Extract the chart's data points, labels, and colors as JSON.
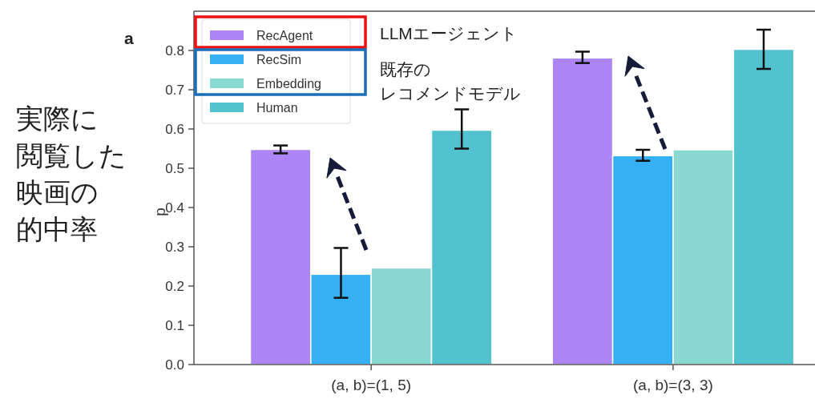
{
  "chart_data": {
    "type": "bar",
    "ylabel": "p",
    "categories": [
      "(a, b)=(1, 5)",
      "(a, b)=(3, 3)"
    ],
    "series": [
      {
        "name": "RecAgent",
        "color": "#ad85f5",
        "values": [
          0.548,
          0.781
        ],
        "errors": [
          0.01,
          [
            0.768,
            0.797
          ]
        ]
      },
      {
        "name": "RecSim",
        "color": "#35b0f5",
        "values": [
          0.23,
          0.532
        ],
        "errors": [
          [
            0.17,
            0.297
          ],
          [
            0.519,
            0.547
          ]
        ]
      },
      {
        "name": "Embedding",
        "color": "#8ad8d2",
        "values": [
          0.246,
          0.547
        ],
        "errors": [
          null,
          null
        ]
      },
      {
        "name": "Human",
        "color": "#52c2cf",
        "values": [
          0.597,
          0.803
        ],
        "errors": [
          [
            0.55,
            0.65
          ],
          [
            0.753,
            0.853
          ]
        ]
      }
    ],
    "ylim": [
      0,
      0.9
    ],
    "yticks": [
      {
        "value": 0,
        "label": "0.0"
      },
      0.1,
      0.2,
      0.3,
      0.4,
      0.5,
      0.6,
      0.7,
      0.8
    ],
    "legend": "top left",
    "annotations": [
      "a",
      "LLMエージェント",
      "既存の",
      "レコメンドモデル",
      "実際に",
      "閲覧した",
      "映画の",
      "的中率"
    ]
  }
}
